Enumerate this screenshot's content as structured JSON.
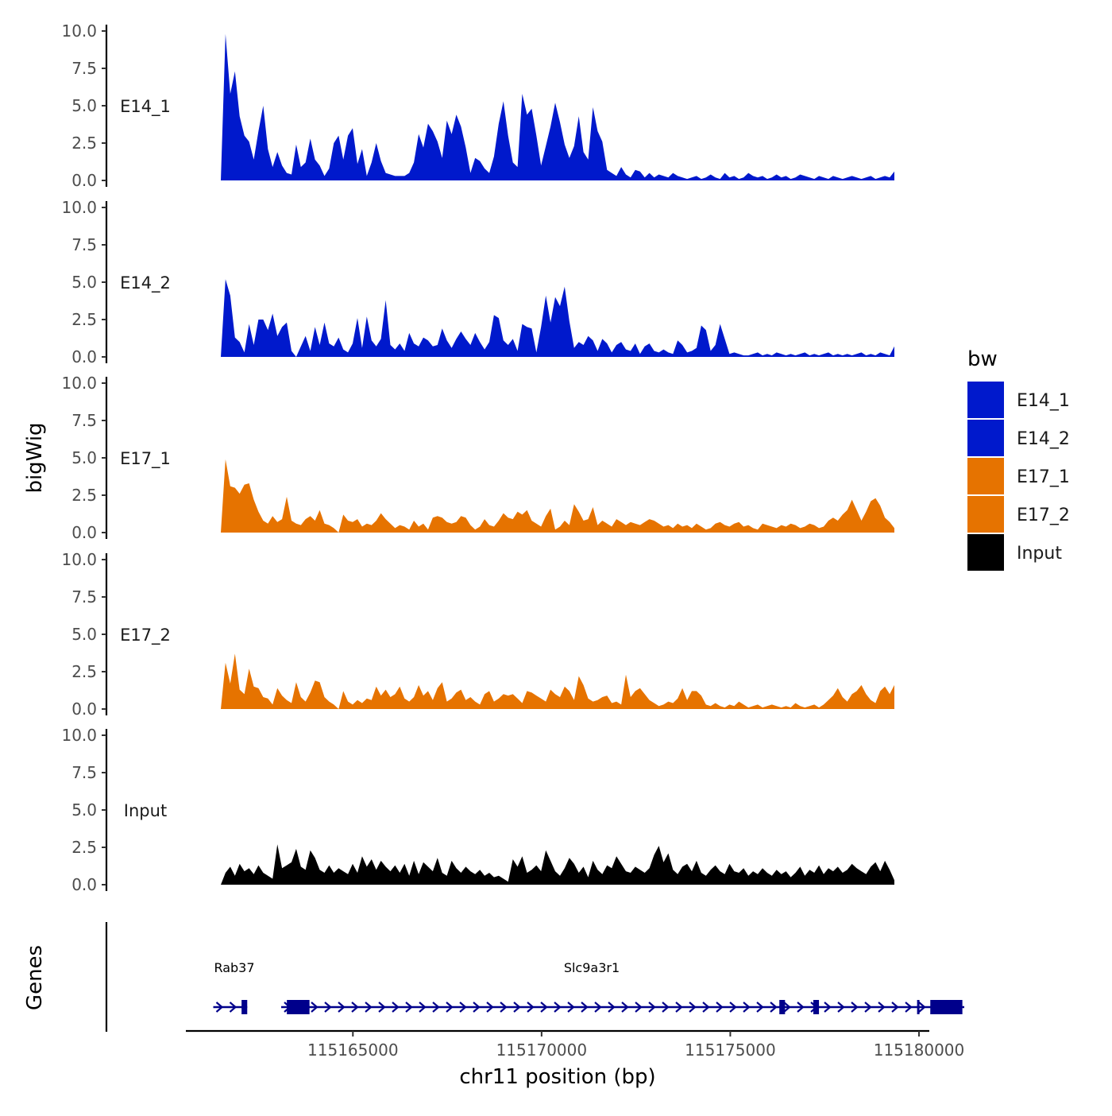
{
  "chart_data": {
    "type": "area",
    "y_axis_title": "bigWig",
    "genes_axis_title": "Genes",
    "x_axis_title": "chr11 position (bp)",
    "x_range": [
      115161500,
      115181200
    ],
    "x_ticks": [
      115165000,
      115170000,
      115175000,
      115180000
    ],
    "x_tick_labels": [
      "115165000",
      "115170000",
      "115175000",
      "115180000"
    ],
    "y_range": [
      0,
      10
    ],
    "y_tick_labels": [
      "0.0",
      "2.5",
      "5.0",
      "7.5",
      "10.0"
    ],
    "y_ticks": [
      0,
      2.5,
      5,
      7.5,
      10
    ],
    "legend": {
      "title": "bw",
      "entries": [
        {
          "label": "E14_1",
          "color": "#0019CC"
        },
        {
          "label": "E14_2",
          "color": "#0019CC"
        },
        {
          "label": "E17_1",
          "color": "#E67300"
        },
        {
          "label": "E17_2",
          "color": "#E67300"
        },
        {
          "label": "Input",
          "color": "#000000"
        }
      ]
    },
    "tracks": [
      {
        "name": "E14_1",
        "color": "#0019CC",
        "x_start": 115161500,
        "x_end": 115181200,
        "step": 140,
        "values": [
          0.0,
          9.8,
          5.8,
          7.3,
          4.3,
          3.0,
          2.6,
          1.4,
          3.3,
          5.0,
          2.1,
          0.9,
          1.9,
          1.0,
          0.5,
          0.4,
          2.4,
          0.9,
          1.2,
          2.8,
          1.4,
          1.0,
          0.3,
          0.8,
          2.5,
          3.0,
          1.4,
          3.0,
          3.5,
          1.1,
          2.1,
          0.3,
          1.2,
          2.5,
          1.3,
          0.5,
          0.4,
          0.3,
          0.3,
          0.3,
          0.5,
          1.2,
          3.1,
          2.2,
          3.8,
          3.3,
          2.6,
          1.5,
          4.0,
          3.1,
          4.4,
          3.6,
          2.2,
          0.5,
          1.5,
          1.3,
          0.8,
          0.5,
          1.6,
          3.8,
          5.3,
          3.0,
          1.2,
          0.9,
          5.8,
          4.4,
          4.8,
          3.0,
          1.0,
          2.3,
          3.6,
          5.2,
          3.9,
          2.4,
          1.5,
          2.3,
          4.3,
          1.9,
          1.4,
          4.9,
          3.3,
          2.6,
          0.7,
          0.5,
          0.3,
          0.9,
          0.4,
          0.2,
          0.7,
          0.6,
          0.2,
          0.5,
          0.2,
          0.4,
          0.3,
          0.2,
          0.5,
          0.3,
          0.2,
          0.1,
          0.2,
          0.3,
          0.1,
          0.2,
          0.4,
          0.2,
          0.1,
          0.5,
          0.2,
          0.3,
          0.1,
          0.2,
          0.5,
          0.3,
          0.2,
          0.3,
          0.1,
          0.2,
          0.4,
          0.2,
          0.3,
          0.1,
          0.2,
          0.4,
          0.3,
          0.2,
          0.1,
          0.3,
          0.2,
          0.1,
          0.3,
          0.2,
          0.1,
          0.2,
          0.3,
          0.2,
          0.1,
          0.2,
          0.3,
          0.1,
          0.2,
          0.3,
          0.2,
          0.6
        ]
      },
      {
        "name": "E14_2",
        "color": "#0019CC",
        "x_start": 115161500,
        "x_end": 115181200,
        "step": 140,
        "values": [
          0.0,
          5.2,
          4.1,
          1.3,
          1.0,
          0.3,
          2.2,
          0.8,
          2.5,
          2.5,
          1.8,
          2.9,
          1.4,
          2.0,
          2.3,
          0.4,
          0.0,
          0.7,
          1.4,
          0.4,
          2.0,
          0.8,
          2.3,
          0.9,
          0.7,
          1.3,
          0.5,
          0.3,
          0.9,
          2.6,
          0.6,
          2.7,
          1.1,
          0.7,
          1.2,
          3.8,
          0.8,
          0.5,
          0.9,
          0.4,
          1.6,
          0.9,
          0.7,
          1.3,
          1.1,
          0.7,
          0.8,
          1.9,
          1.1,
          0.6,
          1.2,
          1.7,
          1.2,
          0.8,
          1.6,
          1.0,
          0.5,
          1.0,
          2.8,
          2.6,
          1.1,
          0.8,
          1.2,
          0.4,
          2.2,
          2.0,
          1.9,
          0.3,
          2.0,
          4.1,
          2.3,
          4.0,
          3.4,
          4.7,
          2.4,
          0.6,
          1.0,
          0.8,
          1.4,
          1.1,
          0.4,
          1.2,
          0.9,
          0.3,
          0.8,
          1.0,
          0.5,
          0.4,
          0.9,
          0.2,
          0.7,
          0.9,
          0.4,
          0.3,
          0.5,
          0.3,
          0.2,
          1.1,
          0.8,
          0.3,
          0.4,
          0.6,
          2.1,
          1.8,
          0.4,
          0.8,
          2.2,
          1.2,
          0.2,
          0.3,
          0.2,
          0.1,
          0.1,
          0.2,
          0.3,
          0.1,
          0.2,
          0.1,
          0.3,
          0.2,
          0.1,
          0.2,
          0.1,
          0.2,
          0.3,
          0.1,
          0.2,
          0.1,
          0.2,
          0.3,
          0.1,
          0.2,
          0.1,
          0.2,
          0.1,
          0.2,
          0.3,
          0.1,
          0.2,
          0.1,
          0.3,
          0.2,
          0.1,
          0.7
        ]
      },
      {
        "name": "E17_1",
        "color": "#E67300",
        "x_start": 115161500,
        "x_end": 115181200,
        "step": 140,
        "values": [
          0.0,
          4.9,
          3.1,
          3.0,
          2.6,
          3.2,
          3.3,
          2.2,
          1.4,
          0.8,
          0.6,
          1.1,
          0.7,
          0.9,
          2.4,
          0.8,
          0.6,
          0.5,
          0.9,
          1.1,
          0.8,
          1.5,
          0.6,
          0.5,
          0.3,
          0.0,
          1.2,
          0.8,
          0.7,
          0.9,
          0.4,
          0.6,
          0.5,
          0.8,
          1.3,
          0.9,
          0.6,
          0.3,
          0.5,
          0.4,
          0.2,
          0.8,
          0.4,
          0.6,
          0.2,
          1.0,
          1.1,
          1.0,
          0.7,
          0.6,
          0.7,
          1.1,
          1.0,
          0.5,
          0.2,
          0.4,
          0.9,
          0.5,
          0.4,
          0.8,
          1.3,
          1.0,
          0.9,
          1.4,
          1.2,
          1.5,
          0.8,
          0.6,
          0.4,
          1.1,
          1.6,
          0.2,
          0.4,
          0.8,
          0.5,
          1.9,
          1.4,
          0.8,
          0.9,
          1.7,
          0.5,
          0.8,
          0.6,
          0.4,
          0.9,
          0.7,
          0.5,
          0.7,
          0.6,
          0.5,
          0.7,
          0.9,
          0.8,
          0.6,
          0.4,
          0.5,
          0.3,
          0.6,
          0.4,
          0.5,
          0.3,
          0.6,
          0.4,
          0.2,
          0.3,
          0.6,
          0.7,
          0.5,
          0.4,
          0.6,
          0.7,
          0.4,
          0.5,
          0.3,
          0.2,
          0.6,
          0.5,
          0.4,
          0.3,
          0.5,
          0.4,
          0.6,
          0.5,
          0.3,
          0.4,
          0.6,
          0.5,
          0.3,
          0.4,
          0.8,
          1.0,
          0.8,
          1.2,
          1.5,
          2.2,
          1.5,
          0.8,
          1.4,
          2.1,
          2.3,
          1.8,
          1.0,
          0.7,
          0.3
        ]
      },
      {
        "name": "E17_2",
        "color": "#E67300",
        "x_start": 115161500,
        "x_end": 115181200,
        "step": 140,
        "values": [
          0.0,
          3.1,
          1.7,
          3.7,
          1.3,
          1.0,
          2.7,
          1.5,
          1.4,
          0.8,
          0.7,
          0.3,
          1.4,
          0.9,
          0.6,
          0.4,
          1.8,
          0.8,
          0.5,
          1.1,
          1.9,
          1.8,
          0.8,
          0.5,
          0.3,
          0.0,
          1.2,
          0.5,
          0.3,
          0.6,
          0.4,
          0.7,
          0.6,
          1.5,
          0.9,
          1.3,
          0.8,
          1.0,
          1.5,
          0.7,
          0.5,
          0.8,
          1.6,
          0.9,
          1.2,
          0.6,
          1.4,
          1.8,
          0.5,
          0.7,
          1.1,
          1.3,
          0.6,
          0.8,
          0.5,
          0.3,
          1.0,
          1.2,
          0.5,
          0.7,
          1.0,
          0.9,
          1.0,
          0.7,
          0.4,
          1.2,
          1.1,
          0.9,
          0.7,
          0.5,
          1.3,
          1.0,
          0.8,
          1.5,
          1.2,
          0.6,
          2.2,
          1.6,
          0.7,
          0.5,
          0.6,
          0.8,
          0.9,
          0.4,
          0.5,
          0.3,
          2.3,
          0.8,
          1.2,
          1.4,
          1.0,
          0.6,
          0.4,
          0.2,
          0.3,
          0.5,
          0.4,
          0.7,
          1.4,
          0.6,
          1.2,
          1.2,
          0.9,
          0.3,
          0.2,
          0.4,
          0.2,
          0.1,
          0.3,
          0.2,
          0.5,
          0.3,
          0.1,
          0.2,
          0.3,
          0.1,
          0.2,
          0.3,
          0.2,
          0.1,
          0.2,
          0.1,
          0.4,
          0.2,
          0.1,
          0.2,
          0.3,
          0.1,
          0.3,
          0.6,
          0.9,
          1.4,
          0.8,
          0.5,
          1.0,
          1.2,
          1.6,
          1.0,
          0.6,
          0.4,
          1.2,
          1.5,
          1.0,
          1.6
        ]
      },
      {
        "name": "Input",
        "color": "#000000",
        "x_start": 115161500,
        "x_end": 115181200,
        "step": 140,
        "values": [
          0.0,
          0.8,
          1.2,
          0.6,
          1.4,
          0.9,
          1.1,
          0.7,
          1.3,
          0.8,
          0.6,
          0.4,
          2.7,
          1.1,
          1.3,
          1.5,
          2.4,
          1.2,
          1.0,
          2.3,
          1.8,
          1.0,
          0.8,
          1.3,
          0.8,
          1.1,
          0.9,
          0.7,
          1.4,
          0.8,
          1.9,
          1.2,
          1.7,
          1.0,
          1.6,
          1.2,
          0.9,
          1.3,
          0.8,
          1.4,
          0.6,
          1.6,
          0.7,
          1.5,
          1.2,
          0.9,
          1.8,
          0.8,
          0.6,
          1.6,
          1.1,
          0.8,
          1.2,
          0.9,
          0.7,
          1.0,
          0.6,
          0.8,
          0.5,
          0.6,
          0.4,
          0.2,
          1.7,
          1.2,
          1.9,
          0.8,
          1.0,
          1.3,
          0.9,
          2.3,
          1.6,
          0.9,
          0.6,
          1.1,
          1.8,
          1.4,
          0.8,
          1.2,
          0.5,
          1.6,
          1.0,
          0.7,
          1.3,
          1.1,
          1.9,
          1.4,
          0.9,
          0.8,
          1.2,
          1.0,
          0.8,
          1.1,
          2.0,
          2.6,
          1.5,
          2.1,
          1.0,
          0.7,
          1.2,
          1.4,
          0.9,
          1.6,
          0.8,
          0.6,
          1.0,
          1.3,
          0.9,
          0.7,
          1.4,
          0.9,
          0.8,
          1.1,
          0.6,
          0.9,
          0.7,
          1.1,
          0.8,
          0.6,
          1.0,
          0.7,
          0.9,
          0.5,
          0.8,
          1.2,
          0.6,
          1.0,
          0.8,
          1.3,
          0.7,
          1.1,
          0.9,
          1.2,
          0.8,
          1.0,
          1.4,
          1.1,
          0.9,
          0.7,
          1.2,
          1.5,
          0.9,
          1.6,
          1.0,
          0.3
        ]
      }
    ],
    "genes": [
      {
        "name": "Rab37",
        "start": 115161300,
        "end": 115162200,
        "strand": "+",
        "exons": [
          [
            115162050,
            115162200
          ]
        ]
      },
      {
        "name": "Slc9a3r1",
        "start": 115163100,
        "end": 115181200,
        "strand": "+",
        "exons": [
          [
            115163250,
            115163850
          ],
          [
            115176300,
            115176450
          ],
          [
            115177200,
            115177350
          ],
          [
            115179950,
            115180000
          ],
          [
            115180300,
            115181150
          ]
        ]
      }
    ],
    "gene_color": "#00008B"
  }
}
